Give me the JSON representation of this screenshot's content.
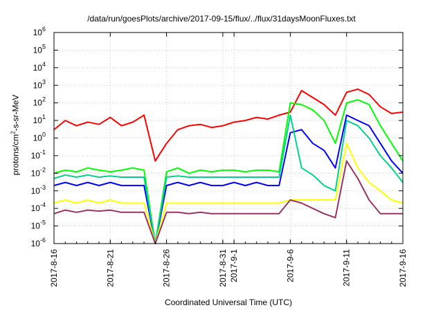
{
  "chart_data": {
    "type": "line",
    "title": "/data/run/goesPlots/archive/2017-09-15/flux/../flux/31daysMoonFluxes.txt",
    "xlabel": "Coordinated Universal Time (UTC)",
    "ylabel": {
      "prefix": "protons/cm",
      "sup": "2",
      "suffix": "-s-sr-MeV"
    },
    "yscale": "log",
    "ylim": [
      1e-06,
      1000000.0
    ],
    "ytick_labels": [
      {
        "base": "10",
        "exp": "-6"
      },
      {
        "base": "10",
        "exp": "-5"
      },
      {
        "base": "10",
        "exp": "-4"
      },
      {
        "base": "10",
        "exp": "-3"
      },
      {
        "base": "10",
        "exp": "-2"
      },
      {
        "base": "10",
        "exp": "-1"
      },
      {
        "base": "10",
        "exp": "0"
      },
      {
        "base": "10",
        "exp": "1"
      },
      {
        "base": "10",
        "exp": "2"
      },
      {
        "base": "10",
        "exp": "3"
      },
      {
        "base": "10",
        "exp": "4"
      },
      {
        "base": "10",
        "exp": "5"
      },
      {
        "base": "10",
        "exp": "6"
      }
    ],
    "xlim": [
      "2017-08-16",
      "2017-09-16"
    ],
    "xtick_labels": [
      "2017-8-16",
      "2017-8-21",
      "2017-8-26",
      "2017-8-31",
      "2017-9-1",
      "2017-9-6",
      "2017-9-11",
      "2017-9-16"
    ],
    "grid": true,
    "x": [
      "2017-08-16",
      "2017-08-17",
      "2017-08-18",
      "2017-08-19",
      "2017-08-20",
      "2017-08-21",
      "2017-08-22",
      "2017-08-23",
      "2017-08-24",
      "2017-08-25",
      "2017-08-26",
      "2017-08-27",
      "2017-08-28",
      "2017-08-29",
      "2017-08-30",
      "2017-08-31",
      "2017-09-01",
      "2017-09-02",
      "2017-09-03",
      "2017-09-04",
      "2017-09-05",
      "2017-09-06",
      "2017-09-07",
      "2017-09-08",
      "2017-09-09",
      "2017-09-10",
      "2017-09-11",
      "2017-09-12",
      "2017-09-13",
      "2017-09-14",
      "2017-09-15",
      "2017-09-16"
    ],
    "series": [
      {
        "color": "#ff0000",
        "values": [
          3,
          10,
          5,
          8,
          6,
          15,
          5,
          8,
          20,
          0.05,
          0.5,
          3,
          5,
          6,
          4,
          5,
          8,
          10,
          15,
          12,
          20,
          30,
          500,
          200,
          80,
          20,
          400,
          600,
          300,
          60,
          25,
          30
        ]
      },
      {
        "color": "#00ff00",
        "values": [
          0.01,
          0.015,
          0.012,
          0.02,
          0.015,
          0.012,
          0.015,
          0.02,
          0.015,
          1e-06,
          0.012,
          0.02,
          0.01,
          0.015,
          0.012,
          0.015,
          0.015,
          0.012,
          0.015,
          0.015,
          0.012,
          100,
          80,
          40,
          10,
          0.5,
          100,
          150,
          80,
          5,
          0.5,
          0.05
        ]
      },
      {
        "color": "#0000ff",
        "values": [
          0.002,
          0.003,
          0.002,
          0.003,
          0.002,
          0.003,
          0.002,
          0.002,
          0.002,
          1e-06,
          0.002,
          0.003,
          0.002,
          0.003,
          0.002,
          0.002,
          0.003,
          0.002,
          0.003,
          0.002,
          0.002,
          2,
          3,
          0.5,
          0.2,
          0.02,
          20,
          10,
          5,
          0.5,
          0.05,
          0.01
        ]
      },
      {
        "color": "#00d090",
        "values": [
          0.005,
          0.008,
          0.006,
          0.008,
          0.006,
          0.007,
          0.006,
          0.006,
          0.006,
          1e-06,
          0.006,
          0.007,
          0.006,
          0.006,
          0.006,
          0.006,
          0.006,
          0.006,
          0.006,
          0.006,
          0.006,
          20,
          0.02,
          0.008,
          0.002,
          0.001,
          10,
          5,
          1,
          0.1,
          0.02,
          0.003
        ]
      },
      {
        "color": "#ffff00",
        "values": [
          0.0002,
          0.0003,
          0.0002,
          0.0003,
          0.0002,
          0.0003,
          0.0002,
          0.0002,
          0.0002,
          1e-06,
          0.0002,
          0.0002,
          0.0002,
          0.0002,
          0.0002,
          0.0002,
          0.0002,
          0.0002,
          0.0002,
          0.0002,
          0.0002,
          0.0003,
          0.0003,
          0.0003,
          0.0003,
          0.0003,
          0.5,
          0.02,
          0.003,
          0.001,
          0.0003,
          0.0002
        ]
      },
      {
        "color": "#993366",
        "values": [
          5e-05,
          8e-05,
          6e-05,
          8e-05,
          7e-05,
          8e-05,
          6e-05,
          6e-05,
          6e-05,
          1e-06,
          6e-05,
          6e-05,
          5e-05,
          6e-05,
          5e-05,
          5e-05,
          5e-05,
          5e-05,
          5e-05,
          5e-05,
          5e-05,
          0.0003,
          0.0002,
          0.0001,
          5e-05,
          3e-05,
          0.05,
          0.005,
          0.0003,
          5e-05,
          5e-05,
          5e-05
        ]
      }
    ]
  }
}
